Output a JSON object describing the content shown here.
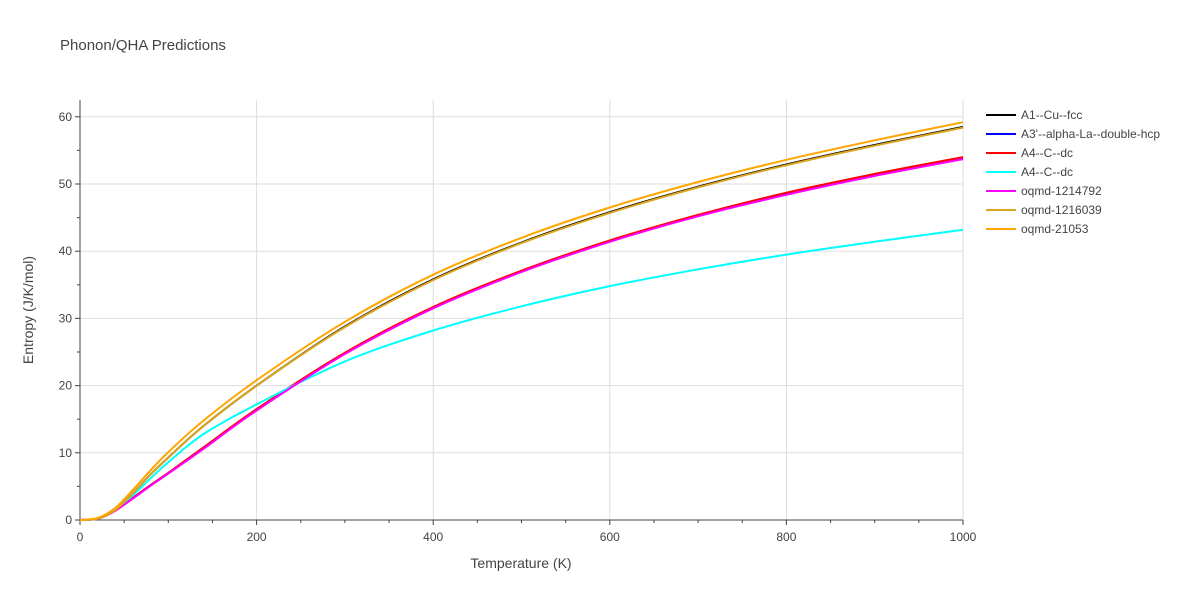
{
  "chart_data": {
    "type": "line",
    "title": "Phonon/QHA Predictions",
    "xlabel": "Temperature (K)",
    "ylabel": "Entropy (J/K/mol)",
    "xlim": [
      0,
      1000
    ],
    "ylim": [
      0,
      62.5
    ],
    "xticks": [
      0,
      200,
      400,
      600,
      800,
      1000
    ],
    "yticks": [
      0,
      10,
      20,
      30,
      40,
      50,
      60
    ],
    "grid": true,
    "legend_position": "right",
    "x": [
      0,
      20,
      40,
      60,
      80,
      100,
      140,
      200,
      300,
      400,
      500,
      600,
      700,
      800,
      900,
      1000
    ],
    "series": [
      {
        "name": "A1--Cu--fcc",
        "color": "#000000",
        "values": [
          0,
          0.2,
          1.5,
          4.0,
          6.8,
          9.3,
          14.0,
          20.0,
          28.8,
          35.8,
          41.3,
          45.8,
          49.6,
          52.9,
          55.8,
          58.5
        ]
      },
      {
        "name": "A3'--alpha-La--double-hcp",
        "color": "#0000ff",
        "values": [
          0,
          0.2,
          1.4,
          3.3,
          5.2,
          7.0,
          10.8,
          16.4,
          24.8,
          31.6,
          37.0,
          41.5,
          45.3,
          48.6,
          51.4,
          53.9
        ]
      },
      {
        "name": "A4--C--dc",
        "color": "#ff0000",
        "values": [
          0,
          0.2,
          1.4,
          3.3,
          5.2,
          7.0,
          10.8,
          16.5,
          24.9,
          31.7,
          37.1,
          41.6,
          45.4,
          48.7,
          51.5,
          54.0
        ]
      },
      {
        "name": "A4--C--dc",
        "color": "#00ffff",
        "values": [
          0,
          0.2,
          1.6,
          3.7,
          6.2,
          8.6,
          12.8,
          17.2,
          23.6,
          28.2,
          31.8,
          34.8,
          37.3,
          39.5,
          41.4,
          43.2
        ]
      },
      {
        "name": "oqmd-1214792",
        "color": "#ff00ff",
        "values": [
          0,
          0.2,
          1.4,
          3.2,
          5.1,
          6.9,
          10.6,
          16.3,
          24.7,
          31.5,
          36.9,
          41.4,
          45.2,
          48.4,
          51.2,
          53.7
        ]
      },
      {
        "name": "oqmd-1216039",
        "color": "#daa520",
        "values": [
          0,
          0.2,
          1.5,
          4.0,
          6.8,
          9.3,
          14.0,
          20.0,
          28.7,
          35.7,
          41.2,
          45.7,
          49.5,
          52.8,
          55.7,
          58.4
        ]
      },
      {
        "name": "oqmd-21053",
        "color": "#ffa500",
        "values": [
          0,
          0.3,
          1.8,
          4.5,
          7.4,
          10.1,
          14.8,
          20.8,
          29.5,
          36.5,
          42.0,
          46.5,
          50.3,
          53.6,
          56.5,
          59.2
        ]
      }
    ]
  }
}
